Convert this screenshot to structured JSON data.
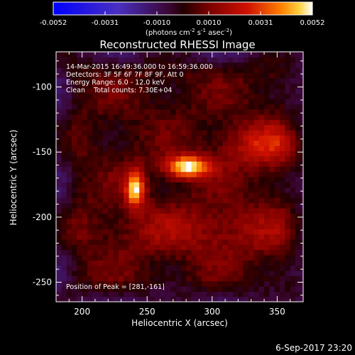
{
  "chart_data": {
    "type": "heatmap",
    "title": "Reconstructed RHESSI Image",
    "xlabel": "Heliocentric X (arcsec)",
    "ylabel": "Heliocentric Y (arcsec)",
    "xlim": [
      180,
      370
    ],
    "ylim": [
      -265,
      -73
    ],
    "x_ticks": [
      200,
      250,
      300,
      350
    ],
    "y_ticks": [
      -100,
      -150,
      -200,
      -250
    ],
    "colorbar": {
      "colormap": "blue-white-red (IDL 5)",
      "ticks": [
        "-0.0052",
        "-0.0031",
        "-0.0010",
        "0.0010",
        "0.0031",
        "0.0052"
      ],
      "range": [
        -0.0052,
        0.0052
      ],
      "units_line": "(photons cm",
      "units_exp1": "-2",
      "units_mid1": " s",
      "units_exp2": "-1",
      "units_mid2": " asec",
      "units_exp3": "-2",
      "units_end": ")"
    },
    "annotations": [
      "14-Mar-2015 16:49:36.000 to 16:59:36.000",
      "Detectors: 3F 5F 6F 7F 8F 9F, Att 0",
      "Energy Range: 6.0 - 12.0 keV",
      "Clean    Total counts: 7.30E+04"
    ],
    "peak_label": "Position of Peak = [281,-161]",
    "sources": [
      {
        "x": 281,
        "y": -161,
        "sx": 12,
        "sy": 6,
        "amp": 0.0052
      },
      {
        "x": 241,
        "y": -178,
        "sx": 5,
        "sy": 10,
        "amp": 0.0046
      },
      {
        "x": 340,
        "y": -145,
        "sx": 22,
        "sy": 12,
        "amp": 0.0021
      },
      {
        "x": 300,
        "y": -210,
        "sx": 60,
        "sy": 14,
        "amp": 0.0012
      }
    ],
    "background_level": 0.001
  },
  "footer": {
    "timestamp": "6-Sep-2017 23:20"
  }
}
